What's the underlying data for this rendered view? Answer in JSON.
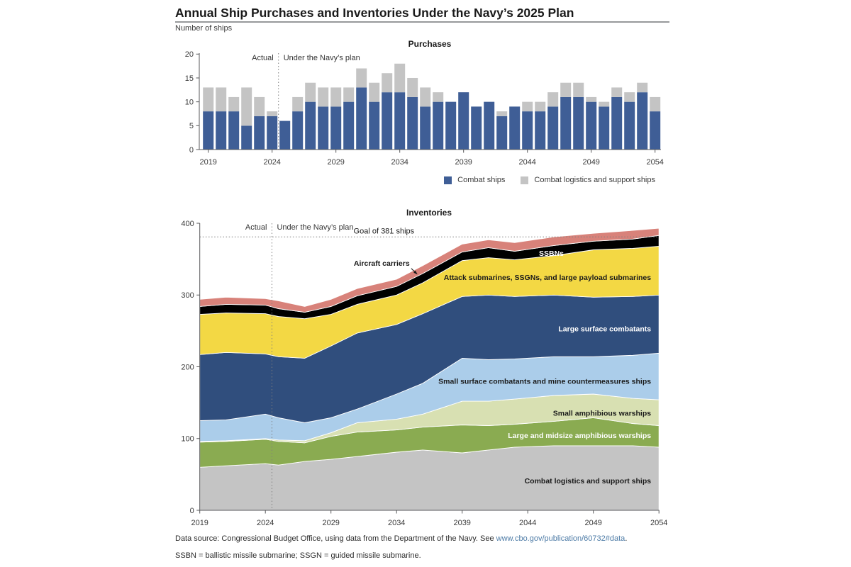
{
  "page": {
    "title": "Annual Ship Purchases and Inventories Under the Navy’s 2025 Plan",
    "subtitle": "Number of ships"
  },
  "notes": {
    "source_prefix": "Data source: Congressional Budget Office, using data from the Department of the Navy. See ",
    "source_link": "www.cbo.gov/publication/60732#data",
    "source_suffix": ".",
    "abbreviations": "SSBN = ballistic missile submarine; SSGN = guided missile submarine."
  },
  "colors": {
    "bar_blue": "#3f5e96",
    "bar_gray": "#c4c4c4",
    "axis": "#58595b",
    "tick_text": "#3a3a3a",
    "dotted_line": "#7f7f7f",
    "link": "#4d7ba6"
  },
  "chart_data": [
    {
      "id": "purchases",
      "type": "bar",
      "stacked": true,
      "title": "Purchases",
      "x": [
        2019,
        2020,
        2021,
        2022,
        2023,
        2024,
        2025,
        2026,
        2027,
        2028,
        2029,
        2030,
        2031,
        2032,
        2033,
        2034,
        2035,
        2036,
        2037,
        2038,
        2039,
        2040,
        2041,
        2042,
        2043,
        2044,
        2045,
        2046,
        2047,
        2048,
        2049,
        2050,
        2051,
        2052,
        2053,
        2054
      ],
      "series": [
        {
          "name": "Combat ships",
          "color": "#3f5e96",
          "values": [
            8,
            8,
            8,
            5,
            7,
            7,
            6,
            8,
            10,
            9,
            9,
            10,
            13,
            10,
            12,
            12,
            11,
            9,
            10,
            10,
            12,
            9,
            10,
            7,
            9,
            8,
            8,
            9,
            11,
            11,
            10,
            9,
            11,
            10,
            12,
            8
          ]
        },
        {
          "name": "Combat logistics and support ships",
          "color": "#c4c4c4",
          "values": [
            5,
            5,
            3,
            8,
            4,
            1,
            0,
            3,
            4,
            4,
            4,
            3,
            4,
            4,
            4,
            6,
            4,
            4,
            2,
            0,
            0,
            0,
            0,
            1,
            0,
            2,
            2,
            3,
            3,
            3,
            1,
            1,
            2,
            2,
            2,
            3
          ]
        }
      ],
      "ylim": [
        0,
        20
      ],
      "yticks": [
        0,
        5,
        10,
        15,
        20
      ],
      "xtick_years": [
        2019,
        2024,
        2029,
        2034,
        2039,
        2044,
        2049,
        2054
      ],
      "divider": {
        "x": 2024.5,
        "left_label": "Actual",
        "right_label": "Under the Navy’s plan"
      },
      "legend": [
        {
          "label": "Combat ships",
          "color": "#3f5e96"
        },
        {
          "label": "Combat logistics and support ships",
          "color": "#c4c4c4"
        }
      ]
    },
    {
      "id": "inventories",
      "type": "area",
      "stacked": true,
      "title": "Inventories",
      "x": [
        2019,
        2021,
        2024,
        2025,
        2027,
        2029,
        2031,
        2034,
        2036,
        2039,
        2041,
        2043,
        2046,
        2049,
        2052,
        2054
      ],
      "series": [
        {
          "name": "Combat logistics and support ships",
          "color": "#c4c4c4",
          "values": [
            60,
            62,
            65,
            63,
            68,
            71,
            75,
            81,
            84,
            80,
            84,
            88,
            90,
            90,
            90,
            88
          ],
          "label": {
            "year": 2053.4,
            "value": 37.5,
            "anchor": "end",
            "color": "#1a1a1a"
          }
        },
        {
          "name": "Large and midsize amphibious warships",
          "color": "#8aab51",
          "values": [
            35,
            34,
            34,
            33,
            26,
            32,
            34,
            31,
            32,
            39,
            34,
            32,
            34,
            39,
            31,
            30
          ],
          "label": {
            "year": 2053.4,
            "value": 100.5,
            "anchor": "end",
            "color": "#ffffff"
          }
        },
        {
          "name": "Small amphibious warships",
          "color": "#d8e0b2",
          "values": [
            1,
            1,
            1,
            2,
            3,
            5,
            13,
            15,
            18,
            33,
            34,
            35,
            36,
            33,
            35,
            36
          ],
          "label": {
            "year": 2053.4,
            "value": 132,
            "anchor": "end",
            "color": "#1a1a1a"
          }
        },
        {
          "name": "Small surface combatants and mine countermeasures ships",
          "color": "#abcdea",
          "values": [
            29,
            29,
            34,
            31,
            25,
            21,
            19,
            35,
            43,
            60,
            58,
            56,
            54,
            52,
            60,
            65
          ],
          "label": {
            "year": 2053.4,
            "value": 176.5,
            "anchor": "end",
            "color": "#1a1a1a"
          }
        },
        {
          "name": "Large surface combatants",
          "color": "#304e7d",
          "values": [
            92,
            94,
            84,
            85,
            90,
            100,
            106,
            97,
            97,
            86,
            90,
            87,
            86,
            83,
            82,
            81
          ],
          "label": {
            "year": 2053.4,
            "value": 249.5,
            "anchor": "end",
            "color": "#ffffff"
          }
        },
        {
          "name": "Attack submarines, SSGNs, and large payload submarines",
          "color": "#f3d844",
          "values": [
            56,
            55,
            56,
            56,
            55,
            44,
            40,
            41,
            43,
            50,
            52,
            51,
            55,
            66,
            67,
            68
          ],
          "label": {
            "year": 2053.4,
            "value": 321,
            "anchor": "end",
            "color": "#1a1a1a"
          }
        },
        {
          "name": "SSBNs",
          "color": "#000000",
          "values": [
            11,
            12,
            12,
            11,
            9,
            11,
            12,
            12,
            13,
            12,
            14,
            12,
            14,
            12,
            13,
            15
          ],
          "label": {
            "year": 2045.8,
            "value": 354.5,
            "anchor": "middle",
            "color": "#ffffff"
          }
        },
        {
          "name": "Aircraft carriers",
          "color": "#d8827a",
          "values": [
            10,
            10,
            9,
            11,
            8,
            10,
            10,
            10,
            11,
            11,
            11,
            12,
            12,
            11,
            12,
            10
          ]
        }
      ],
      "ylim": [
        0,
        400
      ],
      "yticks": [
        0,
        100,
        200,
        300,
        400
      ],
      "xtick_years": [
        2019,
        2024,
        2029,
        2034,
        2039,
        2044,
        2049,
        2054
      ],
      "divider": {
        "x": 2024.5,
        "left_label": "Actual",
        "right_label": "Under the Navy’s plan"
      },
      "goal": {
        "value": 381,
        "label": "Goal of 381 ships"
      },
      "annotation": {
        "label": "Aircraft carriers",
        "text_year": 2035.0,
        "text_value": 340.5,
        "start_year": 2035.12,
        "start_value": 337,
        "tip_year": 2035.55,
        "tip_value": 329.5
      }
    }
  ]
}
